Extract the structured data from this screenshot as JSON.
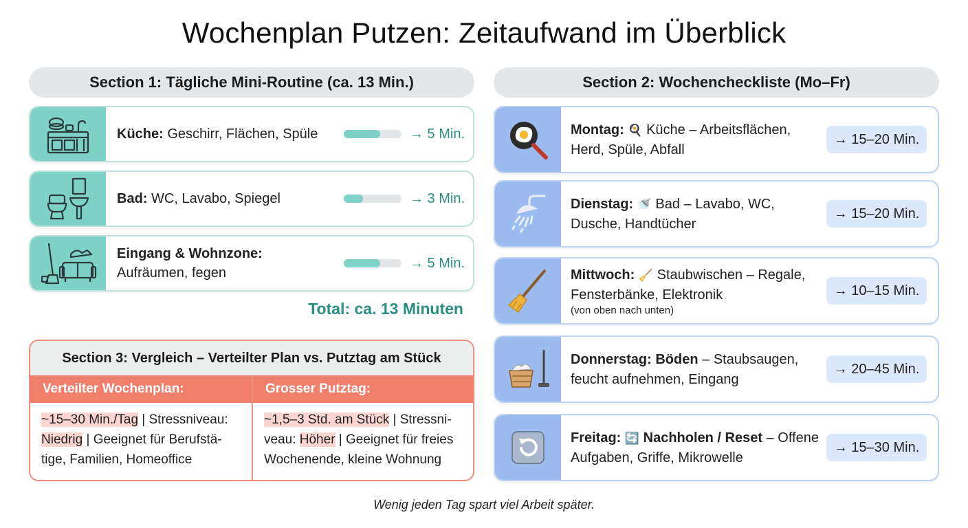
{
  "title": "Wochenplan Putzen: Zeitaufwand im Überblick",
  "section1": {
    "heading": "Section 1: Tägliche Mini-Routine (ca. 13 Min.)",
    "items": [
      {
        "icon": "kitchen-icon",
        "label": "Küche:",
        "text": "Geschirr, Flächen, Spüle",
        "time": "→ 5 Min.",
        "progress": 0.63
      },
      {
        "icon": "bathroom-icon",
        "label": "Bad:",
        "text": "WC, Lavabo, Spiegel",
        "time": "→ 3 Min.",
        "progress": 0.33
      },
      {
        "icon": "living-room-icon",
        "label": "Eingang & Wohnzone:",
        "text": "Aufräumen, fegen",
        "time": "→ 5 Min.",
        "progress": 0.63
      }
    ],
    "total": "Total: ca. 13 Minuten"
  },
  "section2": {
    "heading": "Section 2: Wochencheckliste (Mo–Fr)",
    "days": [
      {
        "icon": "frying-pan-icon",
        "day": "Montag:",
        "emoji": "🍳",
        "text_bold": "",
        "text": "Küche – Arbeitsflächen, Herd, Spüle, Abfall",
        "note": "",
        "time": "→ 15–20 Min."
      },
      {
        "icon": "shower-icon",
        "day": "Dienstag:",
        "emoji": "🚿",
        "text_bold": "",
        "text": "Bad – Lavabo, WC, Dusche, Handtücher",
        "note": "",
        "time": "→ 15–20 Min."
      },
      {
        "icon": "broom-icon",
        "day": "Mittwoch:",
        "emoji": "🧹",
        "text_bold": "",
        "text": "Staubwischen – Regale, Fensterbänke, Elektronik",
        "note": "(von oben nach unten)",
        "time": "→ 10–15 Min."
      },
      {
        "icon": "laundry-mop-icon",
        "day": "Donnerstag:",
        "emoji": "",
        "text_bold": "Böden",
        "text": "– Staubsaugen, feucht aufnehmen, Eingang",
        "note": "",
        "time": "→ 20–45 Min."
      },
      {
        "icon": "reset-icon",
        "day": "Freitag:",
        "emoji": "🔄",
        "text_bold": "Nachholen / Reset",
        "text": "– Offene Aufgaben, Griffe, Mikrowelle",
        "note": "",
        "time": "→ 15–30 Min."
      }
    ]
  },
  "section3": {
    "heading": "Section 3: Vergleich – Verteilter Plan vs. Putztag am Stück",
    "left": {
      "header": "Verteilter Wochenplan:",
      "hl1": "~15–30 Min./Tag",
      "part1": " | Stressniveau: ",
      "hl2": "Niedrig",
      "part2": " | Geeignet für Berufstä-tige, Familien, Homeoffice"
    },
    "right": {
      "header": "Grosser Putztag:",
      "hl1": "~1,5–3 Std. am Stück",
      "part1": " | Stressni-veau: ",
      "hl2": "Höher",
      "part2": " | Geeignet für freies Wochenende, kleine Wohnung"
    }
  },
  "motto": "Wenig jeden Tag spart viel Arbeit später.",
  "colors": {
    "teal": "#7fd3c6",
    "teal_text": "#2a8f82",
    "blue": "#9cbcef",
    "blue_light": "#dce8fb",
    "coral": "#f07f6c",
    "highlight": "#fbd5cf"
  }
}
